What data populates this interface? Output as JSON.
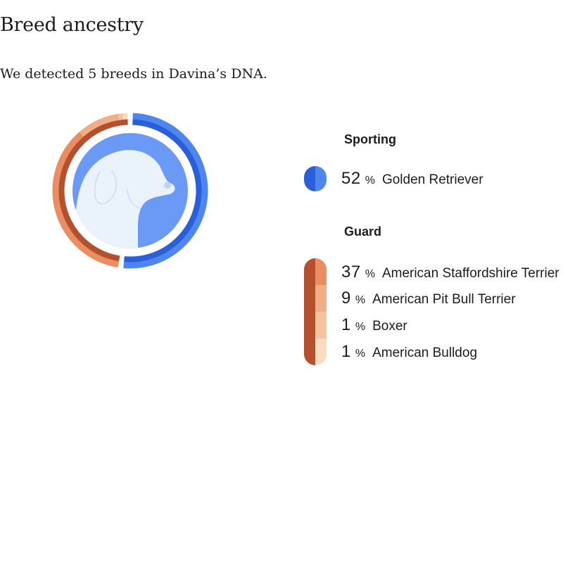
{
  "page": {
    "title": "Breed ancestry",
    "subtitle": "We detected 5 breeds in Davina’s DNA."
  },
  "groups": [
    {
      "name": "Sporting",
      "breeds": [
        {
          "percent": "52",
          "percent_sign": "%",
          "name": "Golden Retriever",
          "value": 52,
          "color": "#4d86ee"
        }
      ]
    },
    {
      "name": "Guard",
      "breeds": [
        {
          "percent": "37",
          "percent_sign": "%",
          "name": "American Staffordshire Terrier",
          "value": 37,
          "color": "#e98e62"
        },
        {
          "percent": "9",
          "percent_sign": "%",
          "name": "American Pit Bull Terrier",
          "value": 9,
          "color": "#f0ad86"
        },
        {
          "percent": "1",
          "percent_sign": "%",
          "name": "Boxer",
          "value": 1,
          "color": "#f5c49f"
        },
        {
          "percent": "1",
          "percent_sign": "%",
          "name": "American Bulldog",
          "value": 1,
          "color": "#f9dcbd"
        }
      ]
    }
  ],
  "colors": {
    "sporting_dark": "#2a5fd8",
    "sporting_light": "#4d86ee",
    "guard_dark": "#b4502e",
    "avatar_bg": "#6a9af5",
    "avatar_dog": "#eaf3fc"
  },
  "icons": {
    "avatar": "dog-head-icon"
  }
}
